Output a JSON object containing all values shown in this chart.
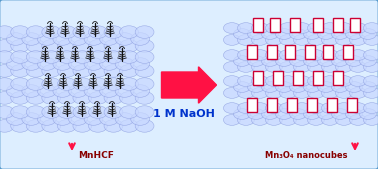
{
  "bg_color": "#ddeeff",
  "border_color": "#5599cc",
  "arrow_color": "#ff1144",
  "arrow_text": "1 M NaOH",
  "arrow_text_color": "#0033cc",
  "label_mnhcf": "MnHCF",
  "label_nanocubes": "Mn₃O₄ nanocubes",
  "label_color": "#880000",
  "graphene_color": "#c8d8ff",
  "graphene_edge_color": "#8899dd",
  "graphene_alpha": 0.75,
  "cube_edge_color": "#cc0033",
  "cube_face_color": "#ffffff",
  "crystal_dark": "#111111",
  "crystal_gray": "#888888",
  "figsize": [
    3.78,
    1.69
  ],
  "dpi": 100
}
